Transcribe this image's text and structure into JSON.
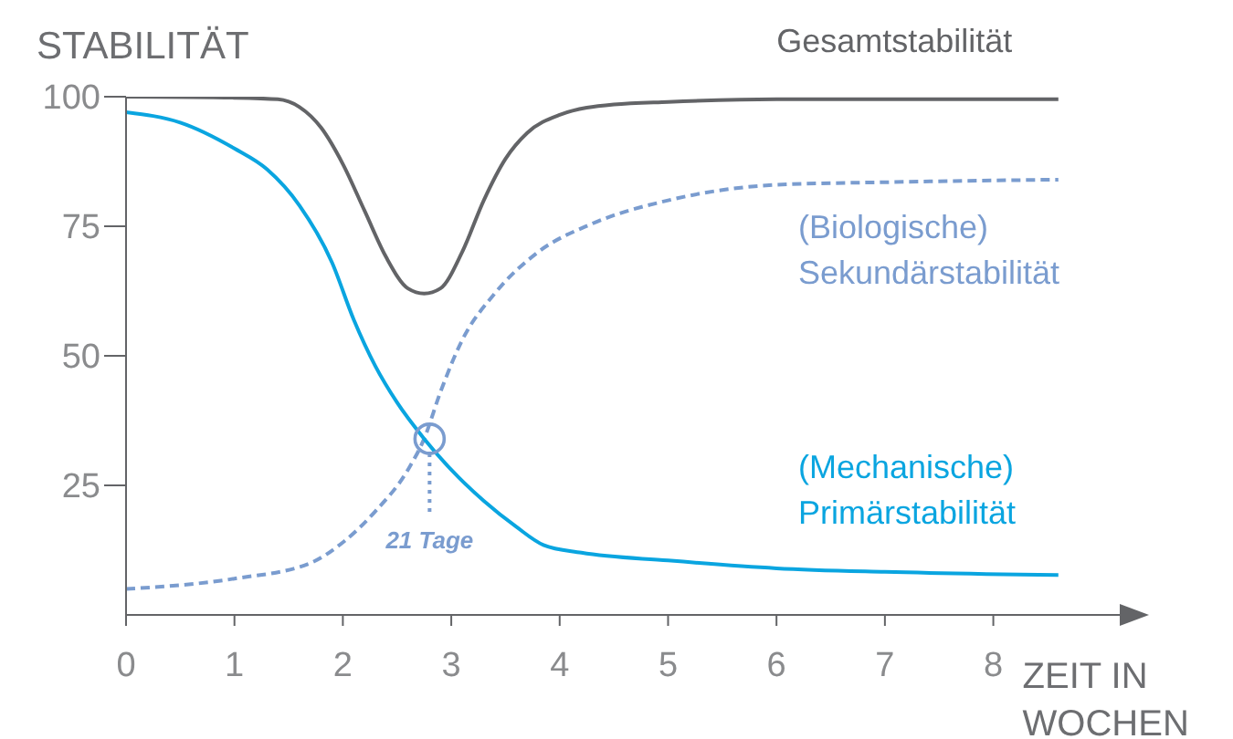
{
  "chart_data": {
    "type": "line",
    "xlabel": "ZEIT IN WOCHEN",
    "ylabel": "STABILITÄT",
    "xlim": [
      0,
      9.2
    ],
    "ylim": [
      0,
      100
    ],
    "xticks": [
      0,
      1,
      2,
      3,
      4,
      5,
      6,
      7,
      8
    ],
    "yticks": [
      25,
      50,
      75,
      100
    ],
    "grid": false,
    "legend": false,
    "marker": "none",
    "series": [
      {
        "name": "Gesamtstabilität",
        "color": "#636467",
        "line_style": "solid",
        "x": [
          0,
          1,
          1.4,
          1.6,
          1.8,
          2,
          2.2,
          2.4,
          2.6,
          2.75,
          2.9,
          3.1,
          3.3,
          3.5,
          3.7,
          4,
          4.5,
          5,
          6,
          7,
          8.6
        ],
        "values": [
          100,
          99.8,
          99.5,
          98,
          94,
          87,
          78,
          69,
          63,
          62,
          63,
          70,
          80,
          88,
          93,
          96.5,
          98.5,
          99,
          99.5,
          99.5,
          99.5
        ]
      },
      {
        "name": "(Biologische) Sekundärstabilität",
        "color": "#7a9ccf",
        "line_style": "dashed",
        "x": [
          0,
          1,
          1.7,
          2,
          2.3,
          2.6,
          2.75,
          2.9,
          3.1,
          3.4,
          3.8,
          4.3,
          5,
          5.5,
          6,
          7,
          8.6
        ],
        "values": [
          5,
          7,
          10,
          14,
          20,
          28,
          34,
          43,
          53,
          62,
          70,
          75.5,
          80,
          82,
          83,
          83.5,
          84
        ]
      },
      {
        "name": "(Mechanische) Primärstabilität",
        "color": "#0aa5e0",
        "line_style": "solid",
        "x": [
          0,
          0.5,
          1,
          1.3,
          1.6,
          1.9,
          2.1,
          2.3,
          2.5,
          2.75,
          3,
          3.3,
          3.6,
          3.85,
          4.2,
          5,
          6,
          7,
          8.6
        ],
        "values": [
          97,
          95,
          90,
          86,
          79,
          68,
          57,
          48,
          41,
          34,
          28,
          22,
          17,
          13.5,
          12,
          10.5,
          9,
          8.3,
          7.7
        ]
      }
    ],
    "annotations": [
      {
        "text": "21 Tage",
        "x": 2.8,
        "y": 34
      }
    ]
  }
}
